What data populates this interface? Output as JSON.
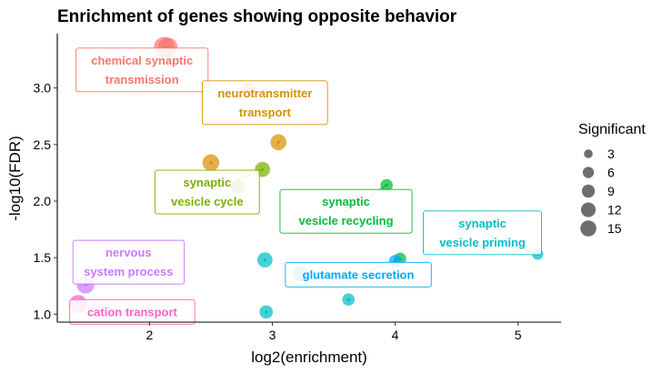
{
  "chart_data": {
    "type": "scatter",
    "title": "Enrichment of genes showing opposite behavior",
    "xlabel": "log2(enrichment)",
    "ylabel": "-log10(FDR)",
    "xlim": [
      1.25,
      5.35
    ],
    "ylim": [
      0.93,
      3.48
    ],
    "xticks": [
      2,
      3,
      4,
      5
    ],
    "yticks": [
      1.0,
      1.5,
      2.0,
      2.5,
      3.0
    ],
    "xtick_labels": [
      "2",
      "3",
      "4",
      "5"
    ],
    "ytick_labels": [
      "1.0",
      "1.5",
      "2.0",
      "2.5",
      "3.0"
    ],
    "grid": false,
    "legend": {
      "title": "Significant",
      "position": "right",
      "sizes": [
        3,
        6,
        9,
        12,
        15
      ],
      "labels": [
        "3",
        "6",
        "9",
        "12",
        "15"
      ]
    },
    "points": [
      {
        "x": 2.12,
        "y": 3.36,
        "size": 15,
        "color": "#F8766D"
      },
      {
        "x": 2.15,
        "y": 3.36,
        "size": 13,
        "color": "#F8766D"
      },
      {
        "x": 2.81,
        "y": 2.98,
        "size": 8,
        "color": "#D89000"
      },
      {
        "x": 3.05,
        "y": 2.52,
        "size": 8,
        "color": "#D89000"
      },
      {
        "x": 2.5,
        "y": 2.34,
        "size": 9,
        "color": "#D89000"
      },
      {
        "x": 2.92,
        "y": 2.28,
        "size": 7,
        "color": "#7CAE00"
      },
      {
        "x": 2.72,
        "y": 2.13,
        "size": 6,
        "color": "#7CAE00"
      },
      {
        "x": 3.93,
        "y": 2.14,
        "size": 4,
        "color": "#00BA38"
      },
      {
        "x": 4.04,
        "y": 1.49,
        "size": 4,
        "color": "#00BA38"
      },
      {
        "x": 5.16,
        "y": 1.53,
        "size": 3,
        "color": "#00BFC4"
      },
      {
        "x": 2.94,
        "y": 1.48,
        "size": 7,
        "color": "#00BFC4"
      },
      {
        "x": 3.23,
        "y": 1.36,
        "size": 7,
        "color": "#00BFC4"
      },
      {
        "x": 3.62,
        "y": 1.13,
        "size": 4,
        "color": "#00BFC4"
      },
      {
        "x": 2.95,
        "y": 1.02,
        "size": 5,
        "color": "#00BFC4"
      },
      {
        "x": 4.0,
        "y": 1.47,
        "size": 4,
        "color": "#00A9FF"
      },
      {
        "x": 2.05,
        "y": 1.48,
        "size": 8,
        "color": "#F2D9A6"
      },
      {
        "x": 1.48,
        "y": 1.26,
        "size": 10,
        "color": "#C77CFF"
      },
      {
        "x": 1.42,
        "y": 1.09,
        "size": 11,
        "color": "#FF61CC"
      }
    ],
    "annotations": [
      {
        "lines": [
          "chemical synaptic",
          "transmission"
        ],
        "x": 1.94,
        "y": 3.16,
        "color": "#F8766D",
        "anchor_x": 2.13,
        "anchor_y": 3.36
      },
      {
        "lines": [
          "neurotransmitter",
          "transport"
        ],
        "x": 2.94,
        "y": 2.87,
        "color": "#D89000",
        "anchor_x": 2.81,
        "anchor_y": 2.98
      },
      {
        "lines": [
          "synaptic",
          "vesicle cycle"
        ],
        "x": 2.47,
        "y": 2.08,
        "color": "#7CAE00",
        "anchor_x": 2.92,
        "anchor_y": 2.28
      },
      {
        "lines": [
          "synaptic",
          "vesicle recycling"
        ],
        "x": 3.6,
        "y": 1.91,
        "color": "#00BA38",
        "anchor_x": 3.93,
        "anchor_y": 2.14
      },
      {
        "lines": [
          "synaptic",
          "vesicle priming"
        ],
        "x": 4.71,
        "y": 1.72,
        "color": "#00BFC4",
        "anchor_x": 5.16,
        "anchor_y": 1.53
      },
      {
        "lines": [
          "glutamate secretion"
        ],
        "x": 3.7,
        "y": 1.35,
        "color": "#00A9FF",
        "anchor_x": 4.0,
        "anchor_y": 1.47
      },
      {
        "lines": [
          "nervous",
          "system process"
        ],
        "x": 1.83,
        "y": 1.46,
        "color": "#C77CFF",
        "anchor_x": 1.48,
        "anchor_y": 1.26
      },
      {
        "lines": [
          "cation transport"
        ],
        "x": 1.86,
        "y": 1.02,
        "color": "#FF61CC",
        "anchor_x": 1.42,
        "anchor_y": 1.09
      }
    ]
  }
}
